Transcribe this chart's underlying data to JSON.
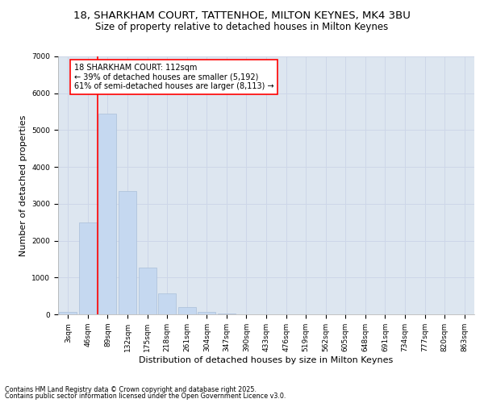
{
  "title_line1": "18, SHARKHAM COURT, TATTENHOE, MILTON KEYNES, MK4 3BU",
  "title_line2": "Size of property relative to detached houses in Milton Keynes",
  "xlabel": "Distribution of detached houses by size in Milton Keynes",
  "ylabel": "Number of detached properties",
  "categories": [
    "3sqm",
    "46sqm",
    "89sqm",
    "132sqm",
    "175sqm",
    "218sqm",
    "261sqm",
    "304sqm",
    "347sqm",
    "390sqm",
    "433sqm",
    "476sqm",
    "519sqm",
    "562sqm",
    "605sqm",
    "648sqm",
    "691sqm",
    "734sqm",
    "777sqm",
    "820sqm",
    "863sqm"
  ],
  "values": [
    75,
    2500,
    5450,
    3350,
    1275,
    575,
    200,
    75,
    30,
    10,
    5,
    2,
    1,
    0,
    0,
    0,
    0,
    0,
    0,
    0,
    0
  ],
  "bar_color": "#c5d8f0",
  "bar_edgecolor": "#aabfd8",
  "vline_x_idx": 2,
  "vline_color": "red",
  "annotation_text": "18 SHARKHAM COURT: 112sqm\n← 39% of detached houses are smaller (5,192)\n61% of semi-detached houses are larger (8,113) →",
  "annotation_box_color": "white",
  "annotation_box_edgecolor": "red",
  "ylim": [
    0,
    7000
  ],
  "yticks": [
    0,
    1000,
    2000,
    3000,
    4000,
    5000,
    6000,
    7000
  ],
  "grid_color": "#cdd6e8",
  "background_color": "#dde6f0",
  "footer_line1": "Contains HM Land Registry data © Crown copyright and database right 2025.",
  "footer_line2": "Contains public sector information licensed under the Open Government Licence v3.0.",
  "title_fontsize": 9.5,
  "subtitle_fontsize": 8.5,
  "tick_fontsize": 6.5,
  "ylabel_fontsize": 8,
  "xlabel_fontsize": 8,
  "annotation_fontsize": 7,
  "footer_fontsize": 5.8
}
